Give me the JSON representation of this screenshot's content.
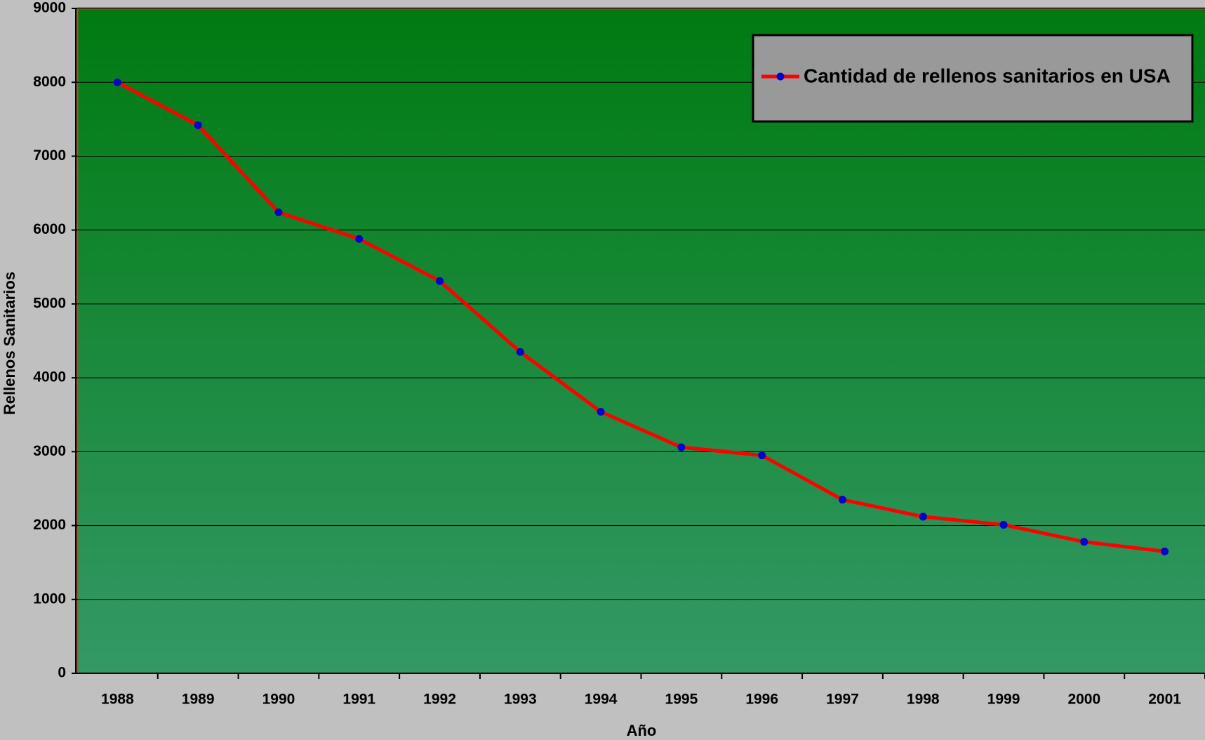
{
  "chart_data": {
    "type": "line",
    "x_label": "Año",
    "y_label": "Rellenos Sanitarios",
    "categories": [
      "1988",
      "1989",
      "1990",
      "1991",
      "1992",
      "1993",
      "1994",
      "1995",
      "1996",
      "1997",
      "1998",
      "1999",
      "2000",
      "2001"
    ],
    "series": [
      {
        "name": "Cantidad de rellenos sanitarios en USA",
        "color": "#ff0000",
        "marker_color": "#0000cc",
        "values": [
          8000,
          7420,
          6240,
          5880,
          5310,
          4350,
          3540,
          3060,
          2950,
          2350,
          2120,
          2010,
          1780,
          1650
        ]
      }
    ],
    "ylim": [
      0,
      9000
    ],
    "yticks": [
      0,
      1000,
      2000,
      3000,
      4000,
      5000,
      6000,
      7000,
      8000,
      9000
    ],
    "grid": true,
    "legend": "upper right"
  }
}
